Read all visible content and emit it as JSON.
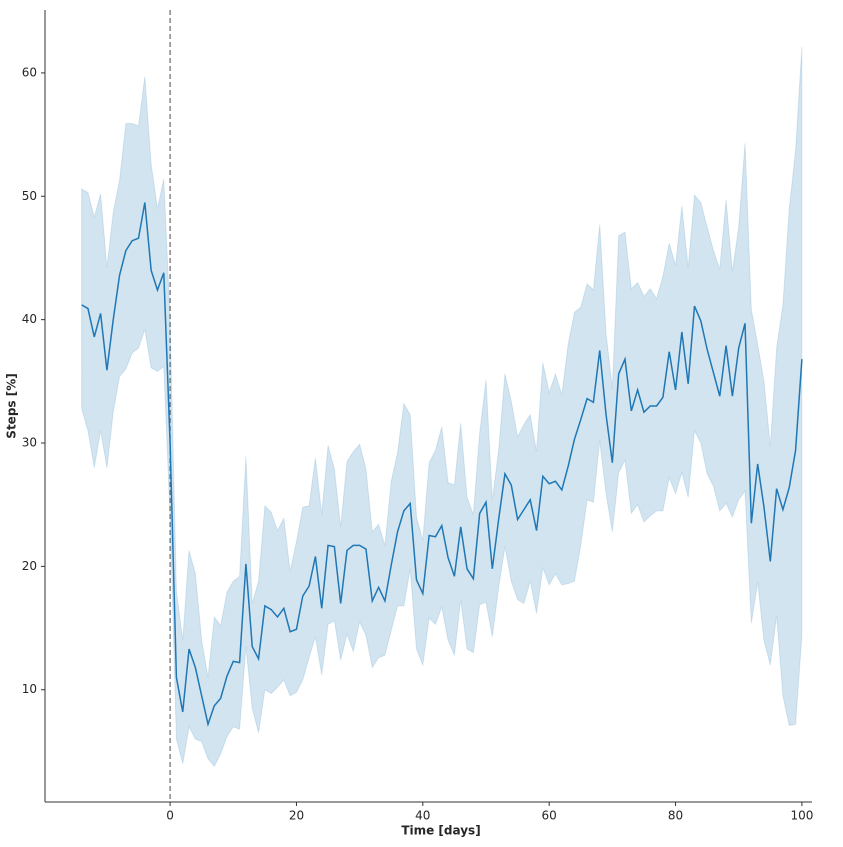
{
  "chart_data": {
    "type": "line",
    "xlabel": "Time [days]",
    "ylabel": "Steps [%]",
    "x": [
      -14,
      -13,
      -12,
      -11,
      -10,
      -9,
      -8,
      -7,
      -6,
      -5,
      -4,
      -3,
      -2,
      -1,
      0,
      1,
      2,
      3,
      4,
      5,
      6,
      7,
      8,
      9,
      10,
      11,
      12,
      13,
      14,
      15,
      16,
      17,
      18,
      19,
      20,
      21,
      22,
      23,
      24,
      25,
      26,
      27,
      28,
      29,
      30,
      31,
      32,
      33,
      34,
      35,
      36,
      37,
      38,
      39,
      40,
      41,
      42,
      43,
      44,
      45,
      46,
      47,
      48,
      49,
      50,
      51,
      52,
      53,
      54,
      55,
      56,
      57,
      58,
      59,
      60,
      61,
      62,
      63,
      64,
      65,
      66,
      67,
      68,
      69,
      70,
      71,
      72,
      73,
      74,
      75,
      76,
      77,
      78,
      79,
      80,
      81,
      82,
      83,
      84,
      85,
      86,
      87,
      88,
      89,
      90,
      91,
      92,
      93,
      94,
      95,
      96,
      97,
      98,
      99,
      100
    ],
    "series": [
      {
        "color": "#1f77b4",
        "values": [
          41.2,
          40.9,
          38.6,
          40.5,
          35.9,
          40.0,
          43.6,
          45.6,
          46.4,
          46.6,
          49.5,
          44.0,
          42.4,
          43.8,
          30.0,
          11.0,
          8.2,
          13.3,
          11.8,
          9.5,
          7.2,
          8.7,
          9.3,
          11.1,
          12.3,
          12.2,
          20.2,
          13.5,
          12.5,
          16.8,
          16.5,
          15.9,
          16.6,
          14.7,
          14.9,
          17.6,
          18.4,
          20.8,
          16.6,
          21.7,
          21.6,
          17.0,
          21.3,
          21.7,
          21.7,
          21.4,
          17.2,
          18.3,
          17.2,
          20.1,
          22.8,
          24.5,
          25.1,
          18.9,
          17.8,
          22.5,
          22.4,
          23.3,
          20.7,
          19.2,
          23.2,
          19.8,
          19.0,
          24.3,
          25.2,
          19.8,
          23.8,
          27.5,
          26.6,
          23.8,
          24.6,
          25.4,
          22.9,
          27.3,
          26.7,
          26.9,
          26.2,
          28.1,
          30.3,
          31.9,
          33.6,
          33.3,
          37.5,
          32.3,
          28.4,
          35.6,
          36.8,
          32.6,
          34.3,
          32.5,
          33.0,
          33.0,
          33.7,
          37.4,
          34.3,
          39.0,
          34.8,
          41.1,
          39.9,
          37.6,
          35.7,
          33.8,
          37.9,
          33.8,
          37.7,
          39.7,
          23.5,
          28.3,
          24.8,
          20.4,
          26.3,
          24.6,
          26.4,
          29.4,
          36.8
        ],
        "upper": [
          50.6,
          50.3,
          48.3,
          50.2,
          44.2,
          48.7,
          51.3,
          55.9,
          55.9,
          55.7,
          59.7,
          52.6,
          49.0,
          51.4,
          40.0,
          18.0,
          14.0,
          21.3,
          19.4,
          14.0,
          11.0,
          15.9,
          15.2,
          17.9,
          18.8,
          19.2,
          28.9,
          17.0,
          18.8,
          24.9,
          24.4,
          22.9,
          23.9,
          19.6,
          22.0,
          24.8,
          24.9,
          28.8,
          24.2,
          29.8,
          27.9,
          23.2,
          28.5,
          29.3,
          29.9,
          27.9,
          22.8,
          23.4,
          21.7,
          26.9,
          29.2,
          33.2,
          32.3,
          24.0,
          22.1,
          28.4,
          29.4,
          31.3,
          26.8,
          26.6,
          31.6,
          25.6,
          24.2,
          30.8,
          35.1,
          25.4,
          29.4,
          35.6,
          33.4,
          30.5,
          31.5,
          32.3,
          29.3,
          36.5,
          34.1,
          35.6,
          33.9,
          38.0,
          40.6,
          41.0,
          42.9,
          42.4,
          47.7,
          38.9,
          34.4,
          46.8,
          47.1,
          42.5,
          43.0,
          41.9,
          42.5,
          41.7,
          43.5,
          46.2,
          44.4,
          49.2,
          44.2,
          50.1,
          49.5,
          47.5,
          45.6,
          44.1,
          49.7,
          43.9,
          47.5,
          54.3,
          40.8,
          38.0,
          35.0,
          29.7,
          37.7,
          41.2,
          49.0,
          53.7,
          62.1
        ],
        "lower": [
          32.8,
          31.0,
          28.0,
          31.0,
          28.0,
          32.5,
          35.4,
          36.0,
          37.3,
          37.7,
          39.2,
          36.1,
          35.8,
          36.2,
          24.0,
          6.0,
          4.0,
          7.0,
          6.0,
          5.8,
          4.4,
          3.8,
          4.8,
          6.2,
          7.0,
          6.8,
          13.5,
          8.5,
          6.5,
          10.0,
          9.7,
          10.2,
          10.8,
          9.5,
          9.8,
          10.8,
          12.6,
          14.3,
          11.2,
          15.3,
          15.6,
          12.4,
          14.5,
          13.1,
          15.5,
          14.4,
          11.8,
          12.6,
          12.8,
          14.8,
          16.8,
          16.8,
          19.8,
          13.3,
          12.0,
          15.8,
          15.3,
          16.7,
          14.0,
          12.8,
          17.3,
          13.3,
          13.0,
          16.9,
          17.1,
          14.3,
          18.3,
          21.6,
          18.8,
          17.3,
          17.0,
          18.8,
          16.2,
          19.9,
          18.5,
          19.4,
          18.5,
          18.6,
          18.8,
          21.7,
          25.4,
          25.2,
          30.2,
          25.9,
          22.8,
          27.6,
          28.6,
          24.3,
          25.0,
          23.6,
          24.1,
          24.5,
          24.5,
          27.2,
          25.9,
          27.6,
          25.6,
          31.0,
          30.0,
          27.5,
          26.5,
          24.5,
          25.1,
          24.0,
          25.4,
          26.1,
          15.4,
          18.7,
          14.0,
          12.0,
          16.0,
          9.5,
          7.1,
          7.2,
          14.4
        ]
      }
    ],
    "xlim": [
      -19.8,
      101.6
    ],
    "ylim": [
      0.9,
      65.1
    ],
    "xticks": [
      0,
      20,
      40,
      60,
      80,
      100
    ],
    "yticks": [
      10,
      20,
      30,
      40,
      50,
      60
    ],
    "vline": 0,
    "grid": false
  }
}
